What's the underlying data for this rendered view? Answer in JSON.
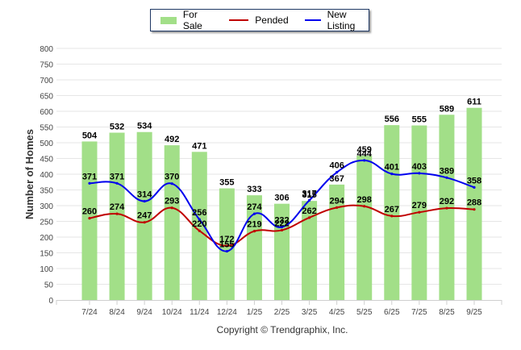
{
  "chart_data": {
    "type": "bar",
    "title": "",
    "xlabel": "",
    "ylabel": "Number of Homes",
    "ylim": [
      0,
      800
    ],
    "yticks": [
      0,
      50,
      100,
      150,
      200,
      250,
      300,
      350,
      400,
      450,
      500,
      550,
      600,
      650,
      700,
      750,
      800
    ],
    "grid": true,
    "legend_position": "top-center",
    "categories": [
      "7/24",
      "8/24",
      "9/24",
      "10/24",
      "11/24",
      "12/24",
      "1/25",
      "2/25",
      "3/25",
      "4/25",
      "5/25",
      "6/25",
      "7/25",
      "8/25",
      "9/25"
    ],
    "series": [
      {
        "name": "For Sale",
        "type": "bar",
        "color": "#a2df88",
        "values": [
          504,
          532,
          534,
          492,
          471,
          355,
          333,
          306,
          315,
          367,
          459,
          556,
          555,
          589,
          611
        ]
      },
      {
        "name": "Pended",
        "type": "line",
        "color": "#c00000",
        "values": [
          260,
          274,
          247,
          293,
          220,
          172,
          219,
          222,
          262,
          294,
          298,
          267,
          279,
          292,
          288
        ]
      },
      {
        "name": "New Listing",
        "type": "line",
        "color": "#0000ee",
        "values": [
          371,
          371,
          314,
          370,
          256,
          155,
          274,
          232,
          317,
          406,
          444,
          401,
          403,
          389,
          358
        ]
      }
    ],
    "footer": "Copyright © Trendgraphix, Inc."
  }
}
